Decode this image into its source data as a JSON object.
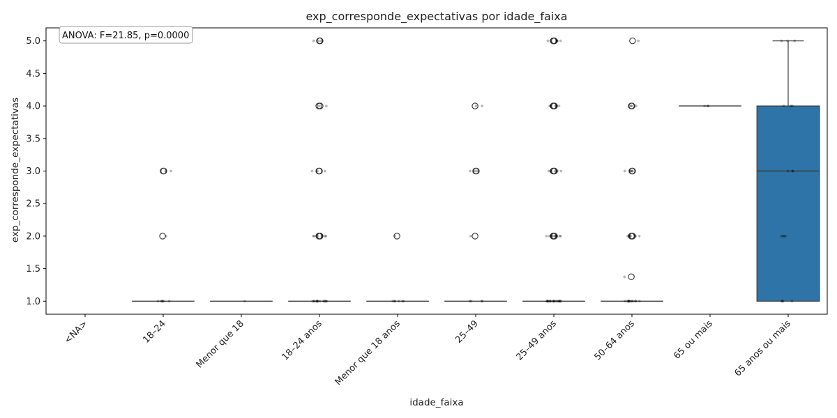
{
  "chart_data": {
    "type": "box",
    "title": "exp_corresponde_expectativas por idade_faixa",
    "xlabel": "idade_faixa",
    "ylabel": "exp_corresponde_expectativas",
    "ylim": [
      0.8,
      5.2
    ],
    "yticks": [
      1.0,
      1.5,
      2.0,
      2.5,
      3.0,
      3.5,
      4.0,
      4.5,
      5.0
    ],
    "ytick_labels": [
      "1.0",
      "1.5",
      "2.0",
      "2.5",
      "3.0",
      "3.5",
      "4.0",
      "4.5",
      "5.0"
    ],
    "grid": false,
    "box_color": "#2e74a8",
    "categories": [
      "<NA>",
      "18–24",
      "Menor que 18",
      "18–24 anos",
      "Menor que 18 anos",
      "25–49",
      "25–49 anos",
      "50–64 anos",
      "65 ou mais",
      "65 anos ou mais"
    ],
    "boxes": [
      null,
      {
        "q1": 1.0,
        "median": 1.0,
        "q3": 1.0,
        "whisker_low": 1.0,
        "whisker_high": 1.0,
        "outliers": [
          2.0,
          3.0,
          3.0
        ]
      },
      {
        "q1": 1.0,
        "median": 1.0,
        "q3": 1.0,
        "whisker_low": 1.0,
        "whisker_high": 1.0,
        "outliers": []
      },
      {
        "q1": 1.0,
        "median": 1.0,
        "q3": 1.0,
        "whisker_low": 1.0,
        "whisker_high": 1.0,
        "outliers": [
          2.0,
          2.0,
          2.0,
          3.0,
          3.0,
          4.0,
          4.0,
          5.0,
          5.0
        ]
      },
      {
        "q1": 1.0,
        "median": 1.0,
        "q3": 1.0,
        "whisker_low": 1.0,
        "whisker_high": 1.0,
        "outliers": [
          2.0
        ]
      },
      {
        "q1": 1.0,
        "median": 1.0,
        "q3": 1.0,
        "whisker_low": 1.0,
        "whisker_high": 1.0,
        "outliers": [
          2.0,
          3.0,
          3.0,
          4.0
        ]
      },
      {
        "q1": 1.0,
        "median": 1.0,
        "q3": 1.0,
        "whisker_low": 1.0,
        "whisker_high": 1.0,
        "outliers": [
          2.0,
          2.0,
          2.0,
          2.0,
          3.0,
          3.0,
          3.0,
          4.0,
          4.0,
          4.0,
          5.0,
          5.0,
          5.0
        ]
      },
      {
        "q1": 1.0,
        "median": 1.0,
        "q3": 1.0,
        "whisker_low": 1.0,
        "whisker_high": 1.0,
        "outliers": [
          1.375,
          2.0,
          2.0,
          2.0,
          3.0,
          3.0,
          4.0,
          4.0,
          5.0
        ]
      },
      {
        "q1": 4.0,
        "median": 4.0,
        "q3": 4.0,
        "whisker_low": 4.0,
        "whisker_high": 4.0,
        "outliers": []
      },
      {
        "q1": 1.0,
        "median": 3.0,
        "q3": 4.0,
        "whisker_low": 1.0,
        "whisker_high": 5.0,
        "outliers": []
      }
    ],
    "strip_points": [
      [],
      [
        1.0,
        1.0,
        1.0,
        1.0,
        1.0,
        1.0,
        2.0,
        3.0,
        3.0
      ],
      [
        1.0
      ],
      [
        1.0,
        1.0,
        1.0,
        1.0,
        1.0,
        1.0,
        1.0,
        1.0,
        1.0,
        1.0,
        1.0,
        1.0,
        1.0,
        1.0,
        2.0,
        2.0,
        2.0,
        2.0,
        2.0,
        2.0,
        3.0,
        3.0,
        3.0,
        4.0,
        4.0,
        5.0,
        5.0,
        5.0
      ],
      [
        1.0,
        1.0,
        1.0,
        1.0,
        1.0,
        1.0,
        2.0
      ],
      [
        1.0,
        1.0,
        1.0,
        1.0,
        2.0,
        3.0,
        3.0,
        3.0,
        4.0,
        4.0
      ],
      [
        1.0,
        1.0,
        1.0,
        1.0,
        1.0,
        1.0,
        1.0,
        1.0,
        1.0,
        1.0,
        1.0,
        1.0,
        1.0,
        1.0,
        1.0,
        1.0,
        1.0,
        1.0,
        1.0,
        1.0,
        2.0,
        2.0,
        2.0,
        2.0,
        2.0,
        2.0,
        2.0,
        2.0,
        2.0,
        2.0,
        3.0,
        3.0,
        3.0,
        3.0,
        3.0,
        4.0,
        4.0,
        4.0,
        4.0,
        4.0,
        5.0,
        5.0,
        5.0,
        5.0,
        5.0
      ],
      [
        1.0,
        1.0,
        1.0,
        1.0,
        1.0,
        1.0,
        1.0,
        1.0,
        1.0,
        1.0,
        1.0,
        1.0,
        1.0,
        1.375,
        2.0,
        2.0,
        2.0,
        2.0,
        2.0,
        2.0,
        3.0,
        3.0,
        3.0,
        3.0,
        3.0,
        4.0,
        4.0,
        4.0,
        5.0
      ],
      [
        4.0,
        4.0,
        4.0
      ],
      [
        1.0,
        1.0,
        1.0,
        1.0,
        2.0,
        2.0,
        2.0,
        2.0,
        3.0,
        3.0,
        3.0,
        4.0,
        4.0,
        4.0,
        5.0,
        5.0,
        5.0
      ]
    ],
    "annotation": "ANOVA: F=21.85, p=0.0000"
  }
}
